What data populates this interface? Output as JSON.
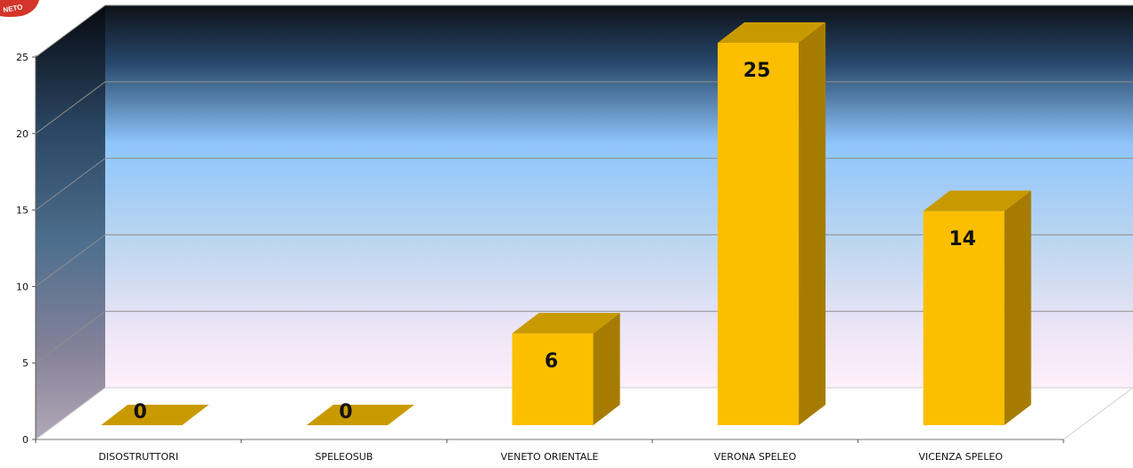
{
  "logo": {
    "text": "NETO"
  },
  "chart_data": {
    "type": "bar",
    "title": "",
    "xlabel": "",
    "ylabel": "",
    "categories": [
      "DISOSTRUTTORI",
      "SPELEOSUB",
      "VENETO ORIENTALE",
      "VERONA SPELEO",
      "VICENZA SPELEO"
    ],
    "values": [
      0,
      0,
      6,
      25,
      14
    ],
    "data_labels": [
      "0",
      "0",
      "6",
      "25",
      "14"
    ],
    "ylim": [
      0,
      25
    ],
    "yticks": [
      "0",
      "5",
      "10",
      "15",
      "20",
      "25"
    ],
    "grid": true,
    "legend": "none",
    "style": "3d",
    "colors": {
      "bar_front": "#FBBF00",
      "bar_top": "#C99A00",
      "bar_side": "#A67C00",
      "gradient_top": "#0d1117",
      "gradient_mid": "#8ec5fb",
      "gradient_bottom": "#fbeefa"
    }
  }
}
